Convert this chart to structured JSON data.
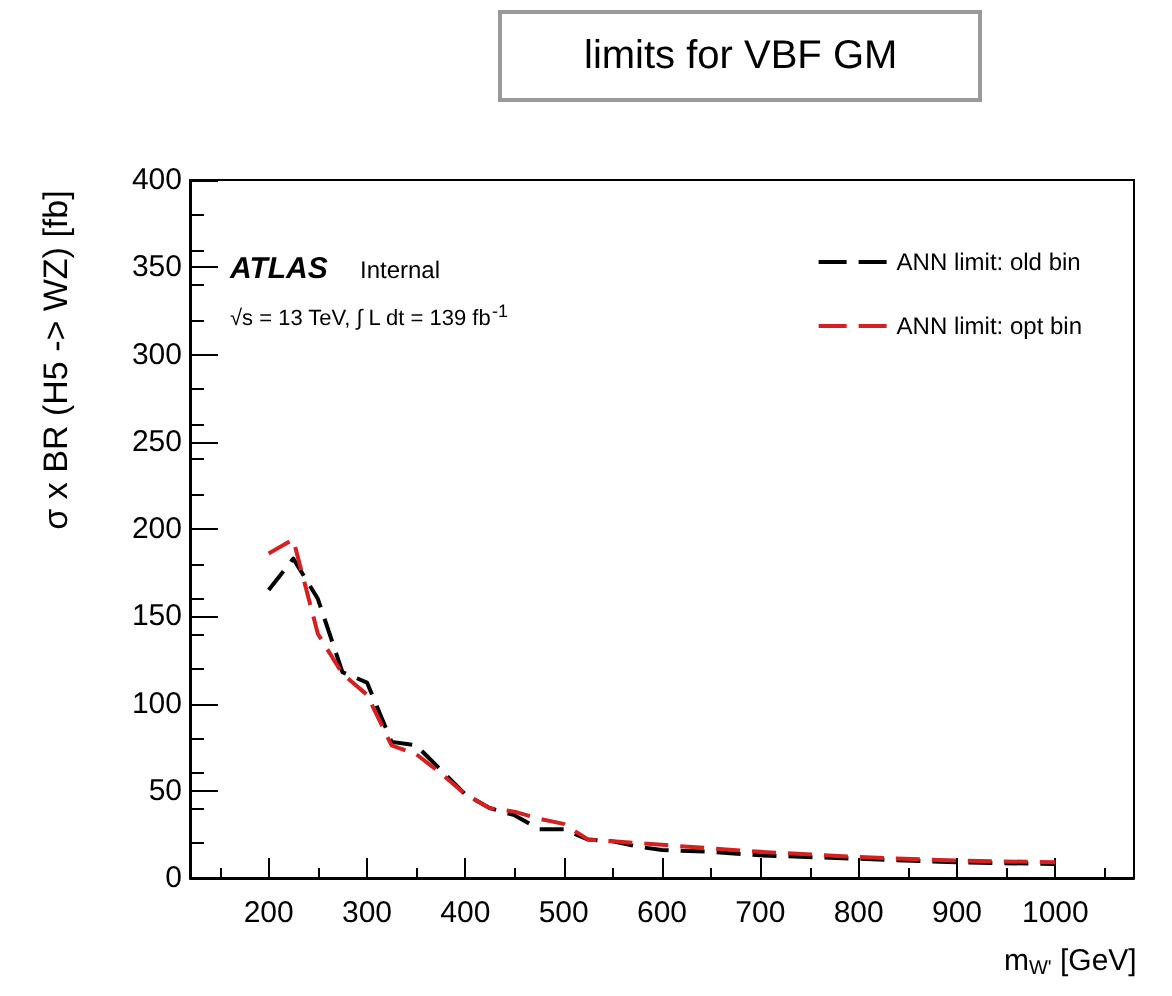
{
  "chart_data": {
    "type": "line",
    "title": "limits for VBF GM",
    "xlabel": "m$_{W'}$ [GeV]",
    "ylabel": "σ x BR (H5 -> WZ) [fb]",
    "annotations": [
      "ATLAS",
      "Internal",
      "√s = 13 TeV, ∫ L dt = 139 fb$^{-1}$"
    ],
    "x": [
      200,
      225,
      250,
      275,
      300,
      325,
      350,
      375,
      400,
      425,
      450,
      475,
      500,
      525,
      550,
      575,
      600,
      650,
      700,
      800,
      900,
      1000
    ],
    "series": [
      {
        "name": "ANN limit: old bin",
        "color": "#000000",
        "values": [
          165,
          183,
          160,
          118,
          112,
          78,
          76,
          62,
          48,
          40,
          36,
          28,
          28,
          22,
          21,
          18,
          16,
          15,
          13,
          11,
          9,
          8
        ]
      },
      {
        "name": "ANN limit: opt bin",
        "color": "#d62020",
        "values": [
          186,
          194,
          140,
          117,
          105,
          76,
          71,
          60,
          48,
          40,
          38,
          34,
          31,
          22,
          21,
          20,
          19,
          17,
          15,
          12,
          10,
          9
        ]
      }
    ],
    "xlim": [
      120,
      1080
    ],
    "xticks": [
      200,
      300,
      400,
      500,
      600,
      700,
      800,
      900,
      1000
    ],
    "ylim": [
      0,
      400
    ],
    "yticks": [
      0,
      50,
      100,
      150,
      200,
      250,
      300,
      350,
      400
    ],
    "grid": false,
    "legend": "top right",
    "marker": "none",
    "line_style": "dashed"
  }
}
